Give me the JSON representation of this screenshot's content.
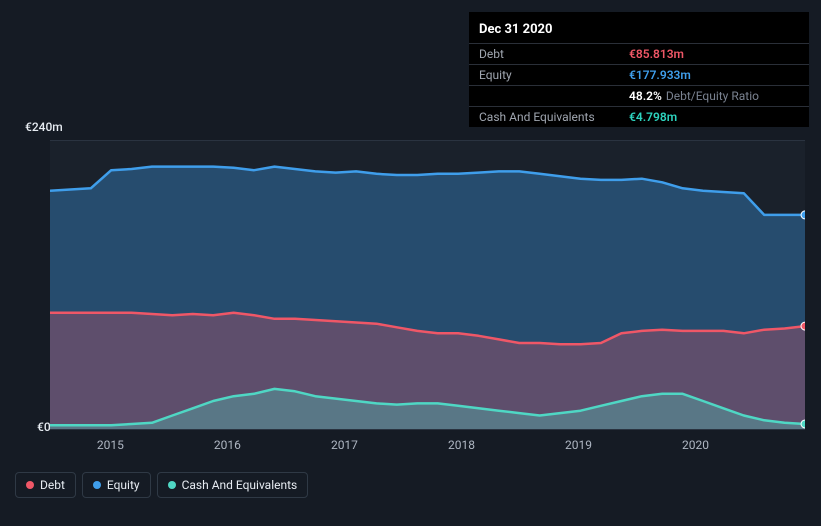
{
  "tooltip": {
    "date": "Dec 31 2020",
    "rows": [
      {
        "label": "Debt",
        "value": "€85.813m",
        "class": "tooltip-value-debt"
      },
      {
        "label": "Equity",
        "value": "€177.933m",
        "class": "tooltip-value-equity"
      },
      {
        "label": "",
        "value": "48.2%",
        "class": "tooltip-value-ratio",
        "suffix": "Debt/Equity Ratio"
      },
      {
        "label": "Cash And Equivalents",
        "value": "€4.798m",
        "class": "tooltip-value-cash"
      }
    ]
  },
  "chart": {
    "type": "area",
    "background_color": "#1a212b",
    "page_bg": "#151b24",
    "ylim": [
      0,
      240
    ],
    "y_ticks": [
      "€240m",
      "€0"
    ],
    "x_categories": [
      "2015",
      "2016",
      "2017",
      "2018",
      "2019",
      "2020"
    ],
    "x_positions_pct": [
      8,
      23.5,
      39,
      54.5,
      70,
      85.5
    ],
    "series": [
      {
        "name": "Equity",
        "color": "#3f9eeb",
        "fill": "rgba(63,158,235,0.35)",
        "values": [
          198,
          199,
          200,
          215,
          216,
          218,
          218,
          218,
          218,
          217,
          215,
          218,
          216,
          214,
          213,
          214,
          212,
          211,
          211,
          212,
          212,
          213,
          214,
          214,
          212,
          210,
          208,
          207,
          207,
          208,
          205,
          200,
          198,
          197,
          196,
          178,
          178,
          178
        ]
      },
      {
        "name": "Debt",
        "color": "#ef5767",
        "fill": "rgba(239,87,103,0.28)",
        "values": [
          97,
          97,
          97,
          97,
          97,
          96,
          95,
          96,
          95,
          97,
          95,
          92,
          92,
          91,
          90,
          89,
          88,
          85,
          82,
          80,
          80,
          78,
          75,
          72,
          72,
          71,
          71,
          72,
          80,
          82,
          83,
          82,
          82,
          82,
          80,
          83,
          84,
          86
        ]
      },
      {
        "name": "Cash And Equivalents",
        "color": "#4fd7c4",
        "fill": "rgba(79,215,196,0.30)",
        "values": [
          4,
          4,
          4,
          4,
          5,
          6,
          12,
          18,
          24,
          28,
          30,
          34,
          32,
          28,
          26,
          24,
          22,
          21,
          22,
          22,
          20,
          18,
          16,
          14,
          12,
          14,
          16,
          20,
          24,
          28,
          30,
          30,
          24,
          18,
          12,
          8,
          6,
          5
        ]
      }
    ],
    "line_width": 2.5,
    "grid_color": "#2a3340",
    "label_fontsize": 12,
    "label_color": "#aeb6c2",
    "marker_end": {
      "radius": 4,
      "stroke": "#ffffff",
      "stroke_width": 1
    }
  },
  "legend": {
    "items": [
      {
        "label": "Debt",
        "dot": "debt"
      },
      {
        "label": "Equity",
        "dot": "equity"
      },
      {
        "label": "Cash And Equivalents",
        "dot": "cash"
      }
    ]
  }
}
